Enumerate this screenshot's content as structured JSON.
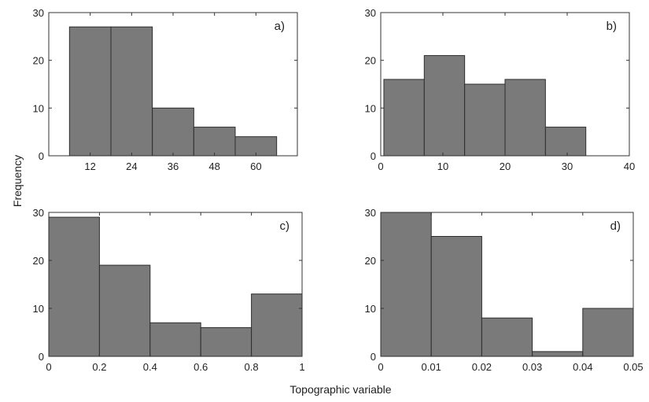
{
  "figure": {
    "ylabel": "Frequency",
    "xlabel": "Topographic variable"
  },
  "colors": {
    "bar_fill": "#7a7a7a",
    "bar_stroke": "#2e2e2e",
    "axis": "#333333",
    "background": "#ffffff"
  },
  "chart_data": [
    {
      "type": "bar",
      "panel": "a)",
      "bins": [
        [
          6,
          18
        ],
        [
          18,
          30
        ],
        [
          30,
          42
        ],
        [
          42,
          54
        ],
        [
          54,
          66
        ]
      ],
      "values": [
        27,
        27,
        10,
        6,
        4
      ],
      "xticks": [
        12,
        24,
        36,
        48,
        60
      ],
      "xtick_labels": [
        "12",
        "24",
        "36",
        "48",
        "60"
      ],
      "xlim": [
        0,
        72
      ],
      "yticks": [
        0,
        10,
        20,
        30
      ],
      "ytick_labels": [
        "0",
        "10",
        "20",
        "30"
      ],
      "ylim": [
        0,
        30
      ],
      "grid": false,
      "label_position": "top-right"
    },
    {
      "type": "bar",
      "panel": "b)",
      "bins": [
        [
          0.5,
          7
        ],
        [
          7,
          13.5
        ],
        [
          13.5,
          20
        ],
        [
          20,
          26.5
        ],
        [
          26.5,
          33
        ]
      ],
      "values": [
        16,
        21,
        15,
        16,
        6
      ],
      "xticks": [
        0,
        10,
        20,
        30,
        40
      ],
      "xtick_labels": [
        "0",
        "10",
        "20",
        "30",
        "40"
      ],
      "xlim": [
        0,
        40
      ],
      "yticks": [
        0,
        10,
        20,
        30
      ],
      "ytick_labels": [
        "0",
        "10",
        "20",
        "30"
      ],
      "ylim": [
        0,
        30
      ],
      "grid": false,
      "label_position": "top-right"
    },
    {
      "type": "bar",
      "panel": "c)",
      "bins": [
        [
          0,
          0.2
        ],
        [
          0.2,
          0.4
        ],
        [
          0.4,
          0.6
        ],
        [
          0.6,
          0.8
        ],
        [
          0.8,
          1.0
        ]
      ],
      "values": [
        29,
        19,
        7,
        6,
        13
      ],
      "xticks": [
        0,
        0.2,
        0.4,
        0.6,
        0.8,
        1
      ],
      "xtick_labels": [
        "0",
        "0.2",
        "0.4",
        "0.6",
        "0.8",
        "1"
      ],
      "xlim": [
        0,
        1
      ],
      "yticks": [
        0,
        10,
        20,
        30
      ],
      "ytick_labels": [
        "0",
        "10",
        "20",
        "30"
      ],
      "ylim": [
        0,
        30
      ],
      "grid": false,
      "label_position": "top-right"
    },
    {
      "type": "bar",
      "panel": "d)",
      "bins": [
        [
          0,
          0.01
        ],
        [
          0.01,
          0.02
        ],
        [
          0.02,
          0.03
        ],
        [
          0.03,
          0.04
        ],
        [
          0.04,
          0.05
        ]
      ],
      "values": [
        30,
        25,
        8,
        1,
        10
      ],
      "xticks": [
        0,
        0.01,
        0.02,
        0.03,
        0.04,
        0.05
      ],
      "xtick_labels": [
        "0",
        "0.01",
        "0.02",
        "0.03",
        "0.04",
        "0.05"
      ],
      "xlim": [
        0,
        0.05
      ],
      "yticks": [
        0,
        10,
        20,
        30
      ],
      "ytick_labels": [
        "0",
        "10",
        "20",
        "30"
      ],
      "ylim": [
        0,
        30
      ],
      "grid": false,
      "label_position": "top-right"
    }
  ]
}
